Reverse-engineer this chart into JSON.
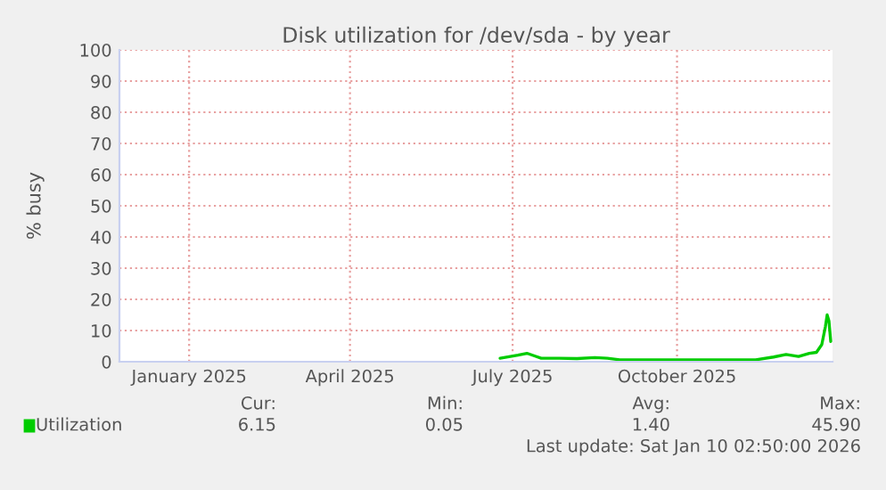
{
  "chart_data": {
    "type": "line",
    "title": "Disk utilization for /dev/sda - by year",
    "ylabel": "% busy",
    "x": [
      "2025-07-09",
      "2025-07-19",
      "2025-07-24",
      "2025-07-29",
      "2025-08-01",
      "2025-08-11",
      "2025-08-21",
      "2025-08-31",
      "2025-09-07",
      "2025-09-14",
      "2025-10-17",
      "2025-11-29",
      "2025-12-09",
      "2025-12-16",
      "2025-12-23",
      "2025-12-29",
      "2026-01-02",
      "2026-01-05",
      "2026-01-07",
      "2026-01-08",
      "2026-01-09",
      "2026-01-10"
    ],
    "series": [
      {
        "name": "Utilization",
        "color": "#00cc00",
        "values": [
          1.1,
          2.1,
          2.7,
          1.7,
          1.1,
          1.1,
          1.0,
          1.3,
          1.1,
          0.6,
          0.6,
          0.6,
          1.5,
          2.3,
          1.7,
          2.7,
          3.0,
          5.5,
          11.2,
          15.0,
          13.1,
          6.5
        ]
      }
    ],
    "xlim": [
      "2024-12-08",
      "2026-01-11"
    ],
    "xticks": [
      {
        "value": "2025-01-16",
        "label": "January 2025"
      },
      {
        "value": "2025-04-16",
        "label": "April 2025"
      },
      {
        "value": "2025-07-16",
        "label": "July 2025"
      },
      {
        "value": "2025-10-16",
        "label": "October 2025"
      }
    ],
    "ylim": [
      0,
      100
    ],
    "yticks": [
      0,
      10,
      20,
      30,
      40,
      50,
      60,
      70,
      80,
      90,
      100
    ],
    "grid": true,
    "legend": "bottom left",
    "annotations": [
      "Cur:",
      "6.15",
      "Min:",
      "0.05",
      "Avg:",
      "1.40",
      "Max:",
      "45.90",
      "Last update: Sat Jan 10 02:50:00 2026"
    ]
  }
}
